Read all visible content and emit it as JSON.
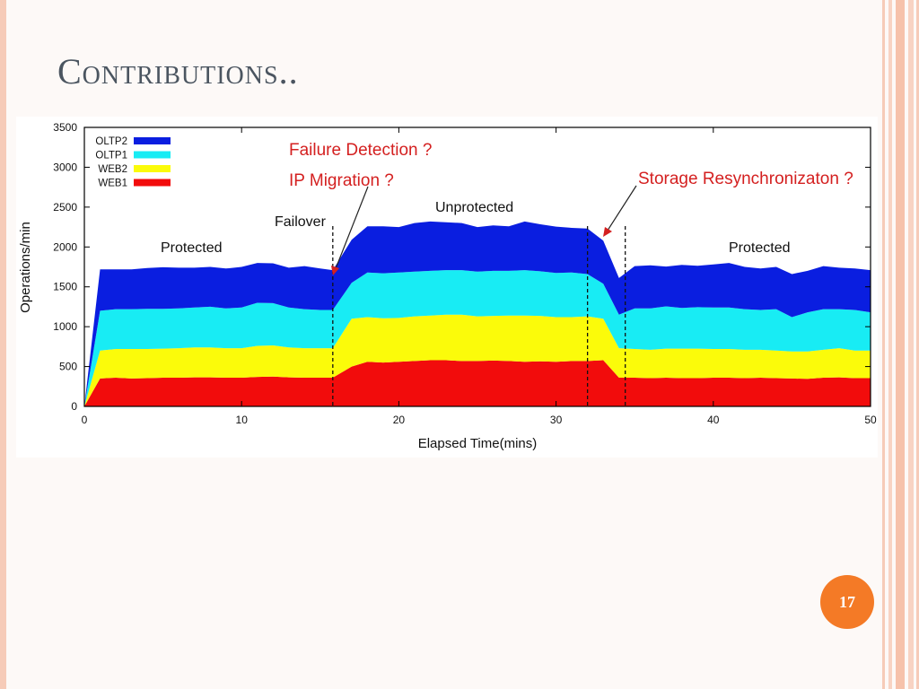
{
  "slide": {
    "title": "Contributions..",
    "page_number": "17"
  },
  "colors": {
    "accent": "#f47a26",
    "oltp2": "#0a1ee0",
    "oltp1": "#18ecf4",
    "web2": "#fbfb0a",
    "web1": "#f20c0c",
    "annotation_red": "#d42020"
  },
  "chart_data": {
    "type": "area",
    "stacked": true,
    "xlabel": "Elapsed Time(mins)",
    "ylabel": "Operations/min",
    "xlim": [
      0,
      50
    ],
    "ylim": [
      0,
      3500
    ],
    "xticks": [
      0,
      10,
      20,
      30,
      40,
      50
    ],
    "yticks": [
      0,
      500,
      1000,
      1500,
      2000,
      2500,
      3000,
      3500
    ],
    "legend_position": "top-left",
    "x": [
      0,
      1,
      2,
      3,
      4,
      5,
      6,
      7,
      8,
      9,
      10,
      11,
      12,
      13,
      14,
      15,
      15.8,
      17,
      18,
      19,
      20,
      21,
      22,
      23,
      24,
      25,
      26,
      27,
      28,
      29,
      30,
      31,
      32,
      33,
      34,
      35,
      36,
      37,
      38,
      39,
      40,
      41,
      42,
      43,
      44,
      45,
      46,
      47,
      48,
      49,
      50
    ],
    "series": [
      {
        "name": "WEB1",
        "color": "#f20c0c",
        "values": [
          0,
          350,
          360,
          350,
          355,
          360,
          360,
          365,
          365,
          360,
          360,
          370,
          375,
          365,
          360,
          360,
          360,
          500,
          560,
          550,
          560,
          570,
          580,
          580,
          570,
          570,
          575,
          570,
          560,
          565,
          560,
          570,
          570,
          580,
          360,
          360,
          355,
          360,
          355,
          355,
          360,
          360,
          355,
          360,
          355,
          350,
          345,
          360,
          365,
          355,
          355
        ]
      },
      {
        "name": "WEB2",
        "color": "#fbfb0a",
        "values": [
          0,
          350,
          360,
          370,
          365,
          365,
          370,
          375,
          375,
          370,
          370,
          390,
          390,
          375,
          370,
          370,
          370,
          600,
          560,
          555,
          550,
          560,
          560,
          570,
          580,
          560,
          560,
          570,
          580,
          570,
          560,
          550,
          560,
          520,
          370,
          360,
          355,
          365,
          370,
          370,
          360,
          360,
          355,
          350,
          345,
          340,
          345,
          350,
          365,
          345,
          345
        ]
      },
      {
        "name": "OLTP1",
        "color": "#18ecf4",
        "values": [
          0,
          500,
          500,
          500,
          505,
          500,
          500,
          500,
          510,
          500,
          510,
          540,
          530,
          500,
          490,
          480,
          480,
          450,
          560,
          565,
          570,
          560,
          560,
          560,
          560,
          560,
          565,
          560,
          570,
          560,
          555,
          560,
          530,
          440,
          420,
          510,
          520,
          530,
          510,
          520,
          520,
          520,
          510,
          500,
          520,
          430,
          490,
          510,
          490,
          510,
          480
        ]
      },
      {
        "name": "OLTP2",
        "color": "#0a1ee0",
        "values": [
          0,
          520,
          500,
          500,
          510,
          520,
          510,
          500,
          500,
          500,
          510,
          500,
          500,
          500,
          540,
          520,
          500,
          540,
          580,
          590,
          570,
          610,
          620,
          600,
          590,
          560,
          570,
          560,
          610,
          590,
          580,
          560,
          570,
          540,
          460,
          530,
          540,
          500,
          540,
          520,
          540,
          560,
          530,
          520,
          530,
          540,
          520,
          540,
          520,
          520,
          530
        ]
      }
    ],
    "legend": [
      "OLTP2",
      "OLTP1",
      "WEB2",
      "WEB1"
    ],
    "vlines": [
      15.8,
      32,
      34.4
    ],
    "annotations": {
      "failure_detection": "Failure  Detection ?",
      "ip_migration": "IP Migration ?",
      "storage_resync": "Storage Resynchronizaton ?",
      "protected_left": "Protected",
      "failover": "Failover",
      "unprotected": "Unprotected",
      "protected_right": "Protected"
    }
  }
}
